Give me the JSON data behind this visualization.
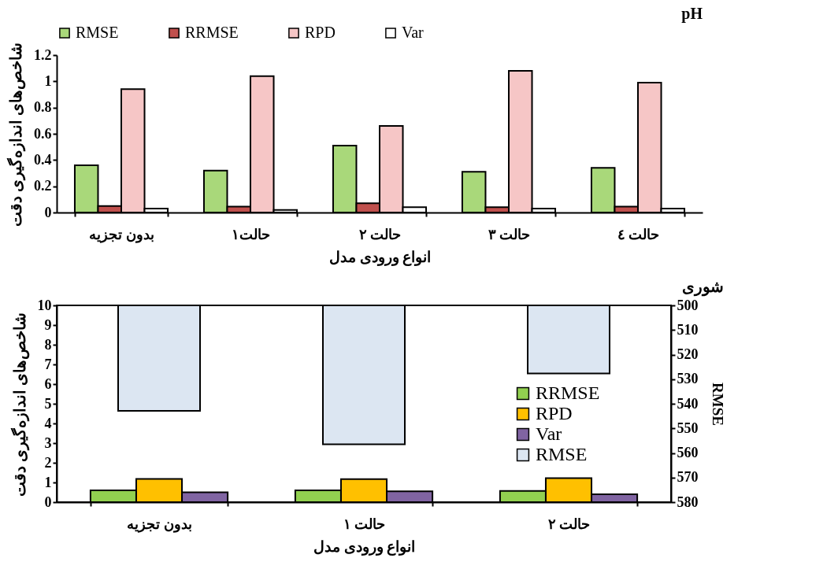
{
  "chart_data": [
    {
      "type": "bar",
      "title": "pH",
      "xlabel": "انواع ورودی مدل",
      "ylabel": "شاخص‌های اندازه‌گیری دقت",
      "categories": [
        "بدون تجزیه",
        "حالت۱",
        "حالت ۲",
        "حالت ۳",
        "حالت ٤"
      ],
      "series": [
        {
          "name": "RMSE",
          "color": "#a9d87a",
          "values": [
            0.36,
            0.32,
            0.51,
            0.31,
            0.34
          ]
        },
        {
          "name": "RRMSE",
          "color": "#c0504d",
          "values": [
            0.05,
            0.045,
            0.07,
            0.04,
            0.045
          ]
        },
        {
          "name": "RPD",
          "color": "#f6c6c6",
          "values": [
            0.94,
            1.04,
            0.66,
            1.08,
            0.99
          ]
        },
        {
          "name": "Var",
          "color": "#ffffff",
          "values": [
            0.03,
            0.02,
            0.04,
            0.03,
            0.03
          ]
        }
      ],
      "ylim": [
        0,
        1.2
      ],
      "yticks": [
        0,
        0.2,
        0.4,
        0.6,
        0.8,
        1,
        1.2
      ],
      "legend": "top"
    },
    {
      "type": "bar",
      "title": "شوری",
      "xlabel": "انواع ورودی مدل",
      "ylabel": "شاخص‌های اندازه‌گیری دقت",
      "y2label": "RMSE",
      "categories": [
        "بدون تجزیه",
        "حالت ۱",
        "حالت ۲"
      ],
      "series": [
        {
          "name": "RRMSE",
          "color": "#92d050",
          "values": [
            0.6,
            0.6,
            0.57
          ]
        },
        {
          "name": "RPD",
          "color": "#ffc000",
          "values": [
            1.18,
            1.17,
            1.22
          ]
        },
        {
          "name": "Var",
          "color": "#8064a2",
          "values": [
            0.5,
            0.55,
            0.4
          ]
        },
        {
          "name": "RMSE",
          "color": "#dce6f2",
          "values": [
            542.9,
            556.5,
            527.7
          ],
          "axis": "y2"
        }
      ],
      "ylim": [
        0,
        10
      ],
      "yticks": [
        0,
        1,
        2,
        3,
        4,
        5,
        6,
        7,
        8,
        9,
        10
      ],
      "y2lim": [
        580,
        500
      ],
      "y2ticks": [
        500,
        510,
        520,
        530,
        540,
        550,
        560,
        570,
        580
      ],
      "legend": "right"
    }
  ]
}
